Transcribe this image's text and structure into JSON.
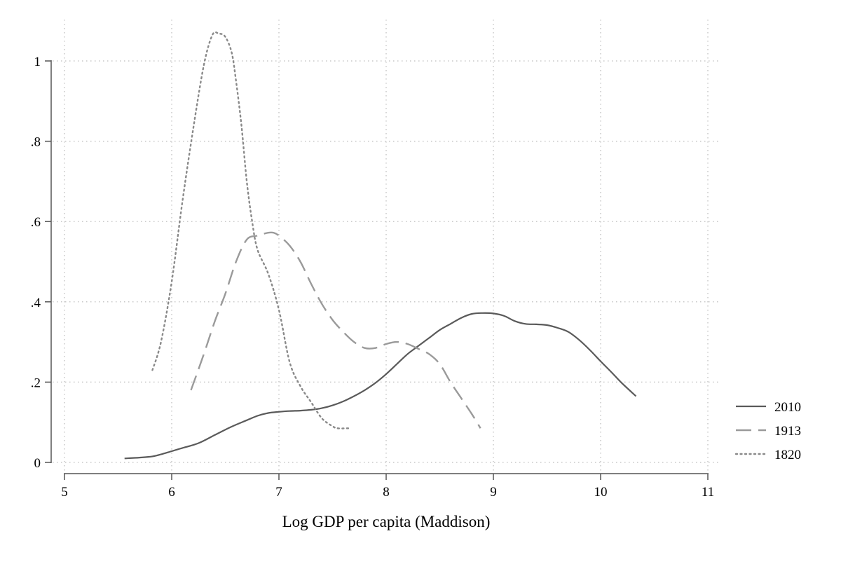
{
  "chart_data": {
    "type": "line",
    "title": "",
    "xlabel": "Log GDP per capita (Maddison)",
    "ylabel": "",
    "xlim": [
      5,
      11
    ],
    "ylim": [
      0,
      1.1
    ],
    "x_ticks": [
      5,
      6,
      7,
      8,
      9,
      10,
      11
    ],
    "x_tick_labels": [
      "5",
      "6",
      "7",
      "8",
      "9",
      "10",
      "11"
    ],
    "y_ticks": [
      0,
      0.2,
      0.4,
      0.6,
      0.8,
      1
    ],
    "y_tick_labels": [
      "0",
      ".2",
      ".4",
      ".6",
      ".8",
      "1"
    ],
    "grid": true,
    "legend_position": "right",
    "series": [
      {
        "name": "2010",
        "style": "solid",
        "color": "#5a5a5a",
        "x": [
          5.56,
          5.7,
          5.82,
          5.9,
          6.0,
          6.1,
          6.25,
          6.4,
          6.55,
          6.7,
          6.8,
          6.9,
          7.0,
          7.1,
          7.2,
          7.3,
          7.4,
          7.5,
          7.6,
          7.7,
          7.8,
          7.9,
          8.0,
          8.1,
          8.2,
          8.3,
          8.4,
          8.5,
          8.6,
          8.7,
          8.8,
          8.9,
          9.0,
          9.1,
          9.2,
          9.3,
          9.4,
          9.5,
          9.6,
          9.7,
          9.8,
          9.9,
          10.0,
          10.1,
          10.2,
          10.33
        ],
        "y": [
          0.01,
          0.012,
          0.015,
          0.02,
          0.028,
          0.036,
          0.048,
          0.068,
          0.088,
          0.105,
          0.116,
          0.123,
          0.126,
          0.128,
          0.129,
          0.131,
          0.135,
          0.142,
          0.152,
          0.165,
          0.18,
          0.198,
          0.22,
          0.245,
          0.27,
          0.29,
          0.31,
          0.33,
          0.345,
          0.36,
          0.37,
          0.372,
          0.371,
          0.365,
          0.352,
          0.345,
          0.344,
          0.342,
          0.335,
          0.325,
          0.305,
          0.28,
          0.252,
          0.225,
          0.197,
          0.165
        ]
      },
      {
        "name": "1913",
        "style": "dashed",
        "color": "#9a9a9a",
        "x": [
          6.18,
          6.3,
          6.4,
          6.5,
          6.6,
          6.7,
          6.8,
          6.9,
          6.95,
          7.0,
          7.1,
          7.2,
          7.3,
          7.4,
          7.5,
          7.6,
          7.7,
          7.8,
          7.9,
          8.0,
          8.1,
          8.2,
          8.3,
          8.4,
          8.5,
          8.6,
          8.7,
          8.8,
          8.88
        ],
        "y": [
          0.18,
          0.27,
          0.35,
          0.42,
          0.5,
          0.555,
          0.565,
          0.572,
          0.572,
          0.565,
          0.54,
          0.5,
          0.445,
          0.395,
          0.355,
          0.325,
          0.3,
          0.285,
          0.285,
          0.295,
          0.3,
          0.295,
          0.283,
          0.27,
          0.245,
          0.2,
          0.16,
          0.12,
          0.085
        ]
      },
      {
        "name": "1820",
        "style": "dotted",
        "color": "#8a8a8a",
        "x": [
          5.82,
          5.9,
          6.0,
          6.1,
          6.2,
          6.3,
          6.38,
          6.44,
          6.5,
          6.56,
          6.6,
          6.65,
          6.7,
          6.75,
          6.8,
          6.9,
          7.0,
          7.1,
          7.2,
          7.3,
          7.4,
          7.5,
          7.55,
          7.65
        ],
        "y": [
          0.23,
          0.3,
          0.45,
          0.65,
          0.83,
          0.99,
          1.065,
          1.068,
          1.06,
          1.02,
          0.95,
          0.84,
          0.7,
          0.6,
          0.53,
          0.47,
          0.38,
          0.25,
          0.19,
          0.15,
          0.11,
          0.09,
          0.085,
          0.085
        ]
      }
    ]
  }
}
